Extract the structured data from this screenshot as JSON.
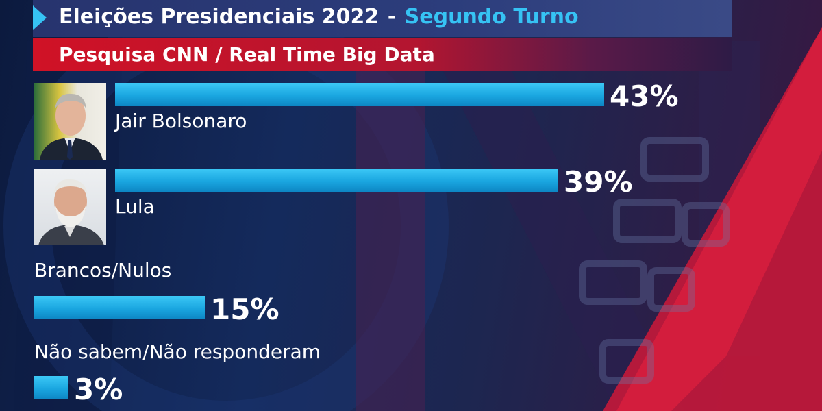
{
  "header": {
    "title": "Eleições Presidenciais 2022",
    "separator": "-",
    "subtitle": "Segundo Turno"
  },
  "subheader": {
    "title": "Pesquisa CNN / Real Time Big Data"
  },
  "colors": {
    "bar": "#1aa6e0",
    "subtitle_accent": "#36c3f4",
    "subheader_red": "#d01226",
    "background": "#142a5c"
  },
  "chart_data": {
    "type": "bar",
    "orientation": "horizontal",
    "categories": [
      "Jair Bolsonaro",
      "Lula",
      "Brancos/Nulos",
      "Não sabem/Não responderam"
    ],
    "values": [
      43,
      39,
      15,
      3
    ],
    "value_labels": [
      "43%",
      "39%",
      "15%",
      "3%"
    ],
    "unit": "%",
    "title": "Eleições Presidenciais 2022 - Segundo Turno",
    "subtitle": "Pesquisa CNN / Real Time Big Data",
    "xlabel": "",
    "ylabel": "",
    "grid": false,
    "legend": false
  }
}
